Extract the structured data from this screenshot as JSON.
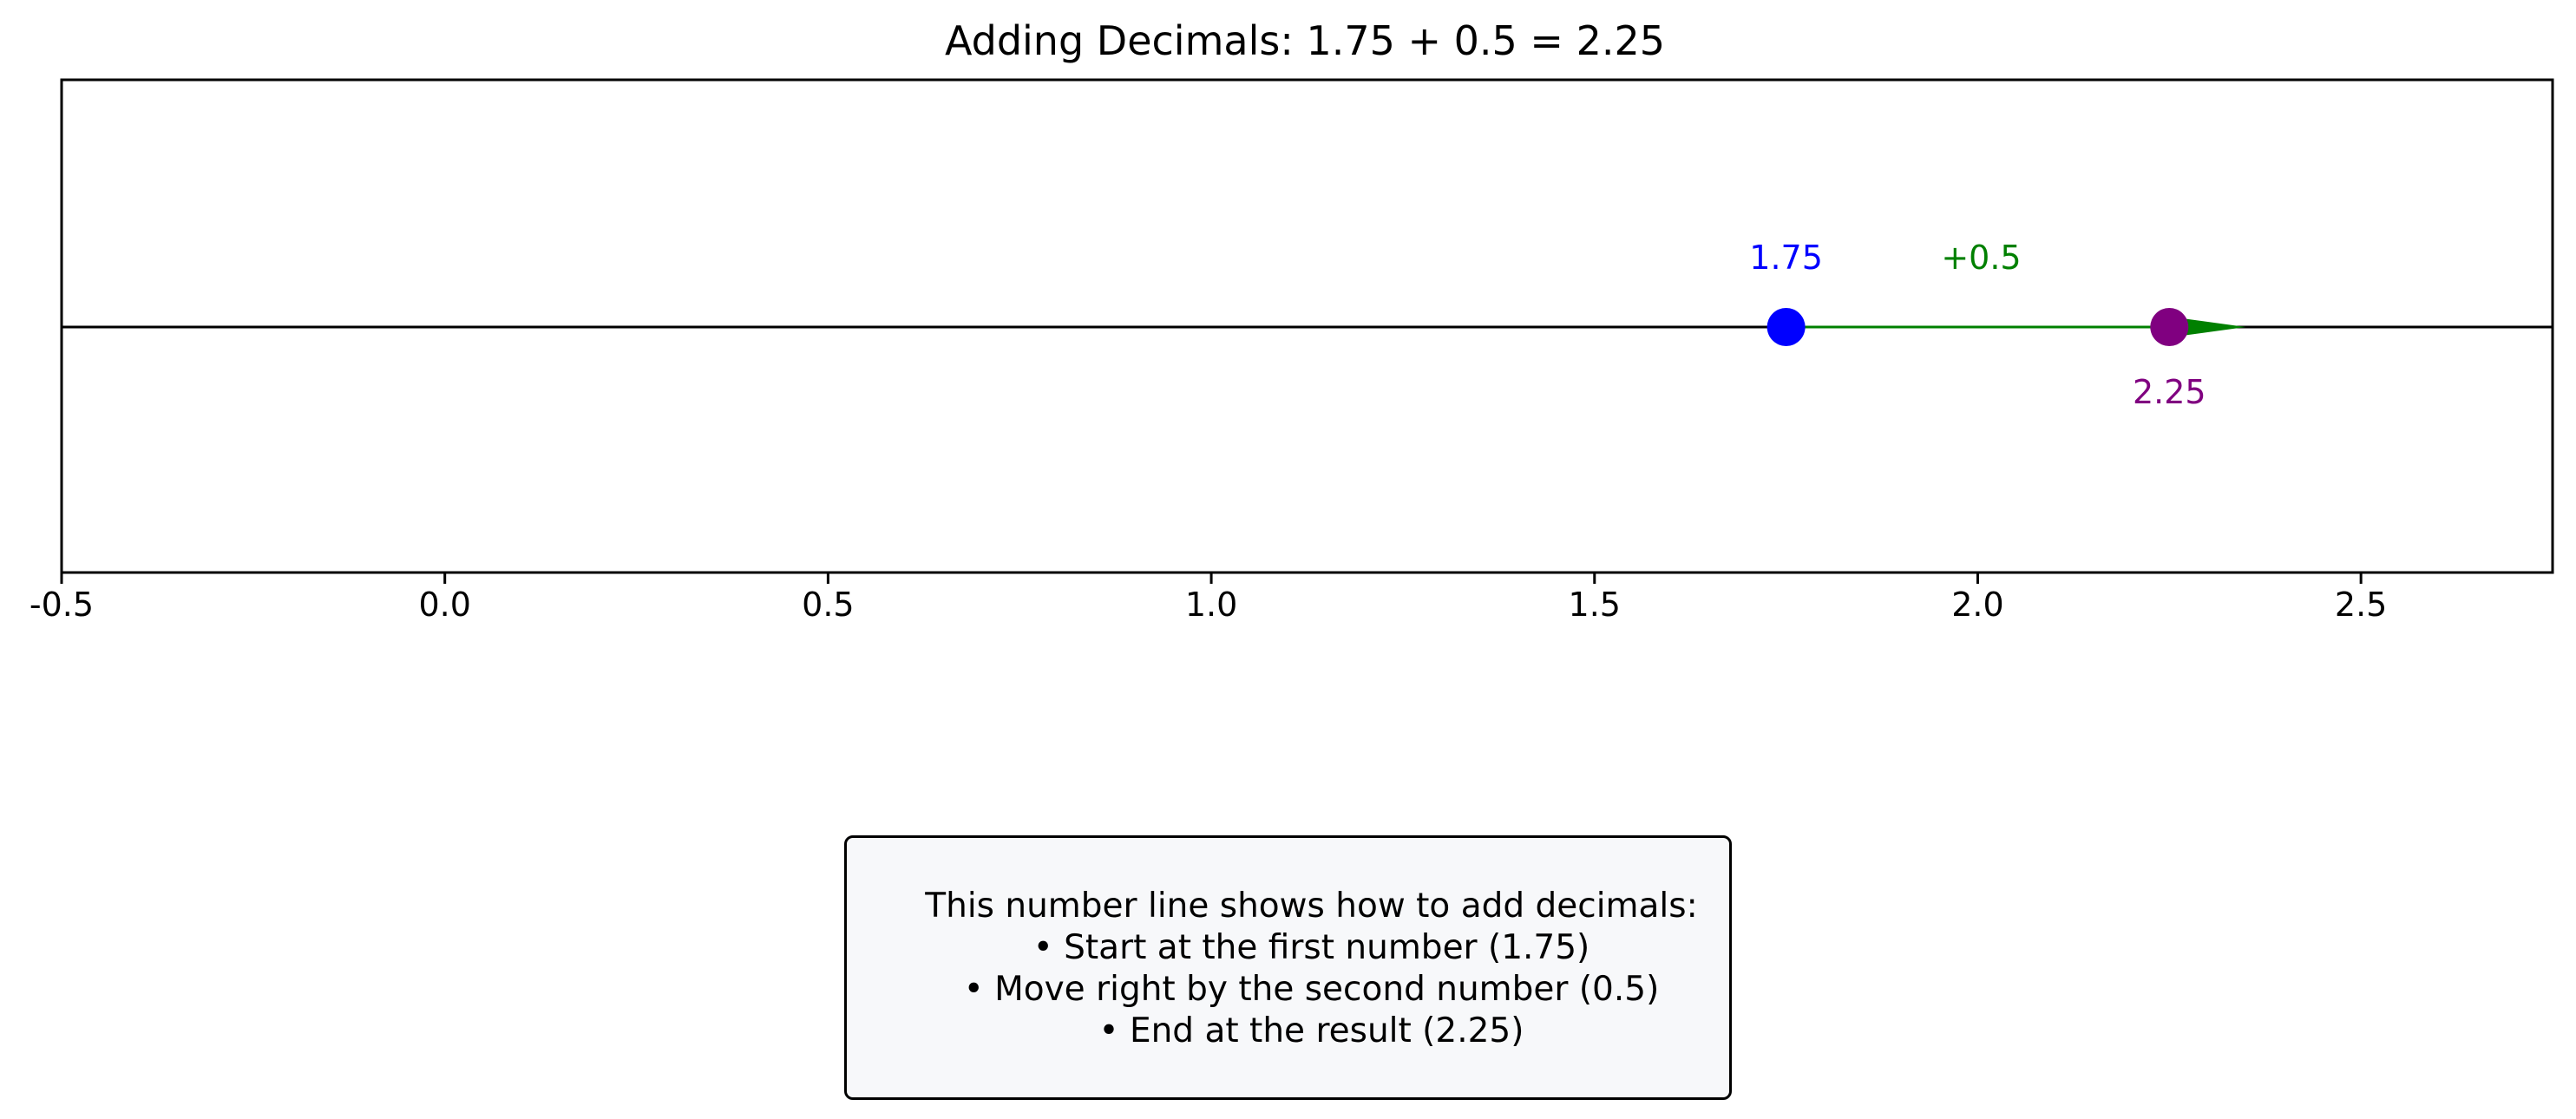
{
  "chart_data": {
    "type": "scatter",
    "title": "Adding Decimals: 1.75 + 0.5 = 2.25",
    "xlabel": "",
    "ylabel": "",
    "xlim": [
      -0.5,
      2.75
    ],
    "x_ticks": [
      -0.5,
      0.0,
      0.5,
      1.0,
      1.5,
      2.0,
      2.5
    ],
    "x_tick_labels": [
      "-0.5",
      "0.0",
      "0.5",
      "1.0",
      "1.5",
      "2.0",
      "2.5"
    ],
    "grid": false,
    "start": {
      "x": 1.75,
      "label": "1.75",
      "color": "#0000ff"
    },
    "result": {
      "x": 2.25,
      "label": "2.25",
      "color": "#800080"
    },
    "step": {
      "from": 1.75,
      "by": 0.5,
      "label": "+0.5",
      "color": "#008000"
    }
  },
  "explanation": {
    "lines": [
      "This number line shows how to add decimals:",
      "• Start at the first number (1.75)",
      "• Move right by the second number (0.5)",
      "• End at the result (2.25)"
    ]
  }
}
